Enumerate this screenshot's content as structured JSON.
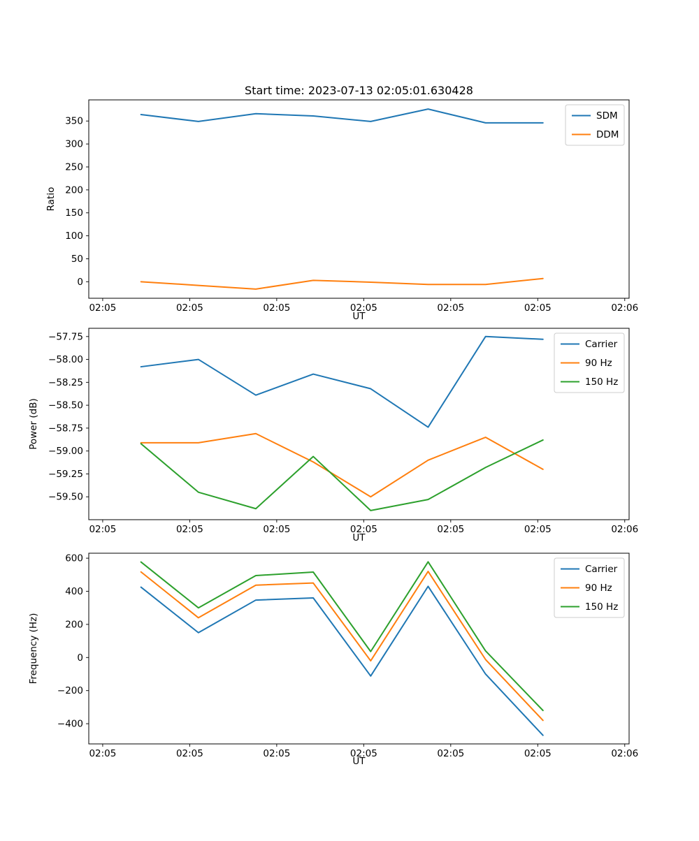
{
  "figure": {
    "title": "Start time: 2023-07-13 02:05:01.630428",
    "background": "#ffffff",
    "text_color": "#000000",
    "spine_color": "#000000",
    "legend_border_color": "#cccccc"
  },
  "chart_data": [
    {
      "type": "line",
      "title": "Start time: 2023-07-13 02:05:01.630428",
      "xlabel": "UT",
      "ylabel": "Ratio",
      "grid": false,
      "x": [
        4.4,
        11.0,
        17.6,
        24.2,
        30.8,
        37.4,
        44.0,
        50.6
      ],
      "xlim": [
        -1.6,
        60.5
      ],
      "ylim": [
        -36,
        396
      ],
      "xticks": [
        {
          "value": 0,
          "label": "02:05"
        },
        {
          "value": 10,
          "label": "02:05"
        },
        {
          "value": 20,
          "label": "02:05"
        },
        {
          "value": 30,
          "label": "02:05"
        },
        {
          "value": 40,
          "label": "02:05"
        },
        {
          "value": 50,
          "label": "02:05"
        },
        {
          "value": 60,
          "label": "02:06"
        }
      ],
      "yticks": [
        {
          "value": 0,
          "label": "0"
        },
        {
          "value": 50,
          "label": "50"
        },
        {
          "value": 100,
          "label": "100"
        },
        {
          "value": 150,
          "label": "150"
        },
        {
          "value": 200,
          "label": "200"
        },
        {
          "value": 250,
          "label": "250"
        },
        {
          "value": 300,
          "label": "300"
        },
        {
          "value": 350,
          "label": "350"
        }
      ],
      "series": [
        {
          "name": "SDM",
          "color": "#1f77b4",
          "values": [
            364,
            349,
            366,
            361,
            349,
            376,
            346,
            346
          ]
        },
        {
          "name": "DDM",
          "color": "#ff7f0e",
          "values": [
            0,
            -8,
            -16,
            3,
            -1,
            -6,
            -6,
            7
          ]
        }
      ],
      "legend": {
        "position": "upper right",
        "entries": [
          "SDM",
          "DDM"
        ]
      }
    },
    {
      "type": "line",
      "title": "",
      "xlabel": "UT",
      "ylabel": "Power (dB)",
      "grid": false,
      "x": [
        4.4,
        11.0,
        17.6,
        24.2,
        30.8,
        37.4,
        44.0,
        50.6
      ],
      "xlim": [
        -1.6,
        60.5
      ],
      "ylim": [
        -59.75,
        -57.66
      ],
      "xticks": [
        {
          "value": 0,
          "label": "02:05"
        },
        {
          "value": 10,
          "label": "02:05"
        },
        {
          "value": 20,
          "label": "02:05"
        },
        {
          "value": 30,
          "label": "02:05"
        },
        {
          "value": 40,
          "label": "02:05"
        },
        {
          "value": 50,
          "label": "02:05"
        },
        {
          "value": 60,
          "label": "02:06"
        }
      ],
      "yticks": [
        {
          "value": -59.5,
          "label": "−59.50"
        },
        {
          "value": -59.25,
          "label": "−59.25"
        },
        {
          "value": -59.0,
          "label": "−59.00"
        },
        {
          "value": -58.75,
          "label": "−58.75"
        },
        {
          "value": -58.5,
          "label": "−58.50"
        },
        {
          "value": -58.25,
          "label": "−58.25"
        },
        {
          "value": -58.0,
          "label": "−58.00"
        },
        {
          "value": -57.75,
          "label": "−57.75"
        }
      ],
      "series": [
        {
          "name": "Carrier",
          "color": "#1f77b4",
          "values": [
            -58.08,
            -58.0,
            -58.39,
            -58.16,
            -58.32,
            -58.74,
            -57.75,
            -57.78
          ]
        },
        {
          "name": "90 Hz",
          "color": "#ff7f0e",
          "values": [
            -58.91,
            -58.91,
            -58.81,
            -59.12,
            -59.5,
            -59.1,
            -58.85,
            -59.2
          ]
        },
        {
          "name": "150 Hz",
          "color": "#2ca02c",
          "values": [
            -58.92,
            -59.45,
            -59.63,
            -59.06,
            -59.65,
            -59.53,
            -59.18,
            -58.88
          ]
        }
      ],
      "legend": {
        "position": "upper right",
        "entries": [
          "Carrier",
          "90 Hz",
          "150 Hz"
        ]
      }
    },
    {
      "type": "line",
      "title": "",
      "xlabel": "UT",
      "ylabel": "Frequency (Hz)",
      "grid": false,
      "x": [
        4.4,
        11.0,
        17.6,
        24.2,
        30.8,
        37.4,
        44.0,
        50.6
      ],
      "xlim": [
        -1.6,
        60.5
      ],
      "ylim": [
        -522,
        630
      ],
      "xticks": [
        {
          "value": 0,
          "label": "02:05"
        },
        {
          "value": 10,
          "label": "02:05"
        },
        {
          "value": 20,
          "label": "02:05"
        },
        {
          "value": 30,
          "label": "02:05"
        },
        {
          "value": 40,
          "label": "02:05"
        },
        {
          "value": 50,
          "label": "02:05"
        },
        {
          "value": 60,
          "label": "02:06"
        }
      ],
      "yticks": [
        {
          "value": -400,
          "label": "−400"
        },
        {
          "value": -200,
          "label": "−200"
        },
        {
          "value": 0,
          "label": "0"
        },
        {
          "value": 200,
          "label": "200"
        },
        {
          "value": 400,
          "label": "400"
        },
        {
          "value": 600,
          "label": "600"
        }
      ],
      "series": [
        {
          "name": "Carrier",
          "color": "#1f77b4",
          "values": [
            425,
            150,
            347,
            360,
            -112,
            430,
            -100,
            -470
          ]
        },
        {
          "name": "90 Hz",
          "color": "#ff7f0e",
          "values": [
            517,
            240,
            437,
            450,
            -20,
            520,
            -12,
            -380
          ]
        },
        {
          "name": "150 Hz",
          "color": "#2ca02c",
          "values": [
            577,
            300,
            495,
            516,
            36,
            578,
            40,
            -320
          ]
        }
      ],
      "legend": {
        "position": "upper right",
        "entries": [
          "Carrier",
          "90 Hz",
          "150 Hz"
        ]
      }
    }
  ]
}
